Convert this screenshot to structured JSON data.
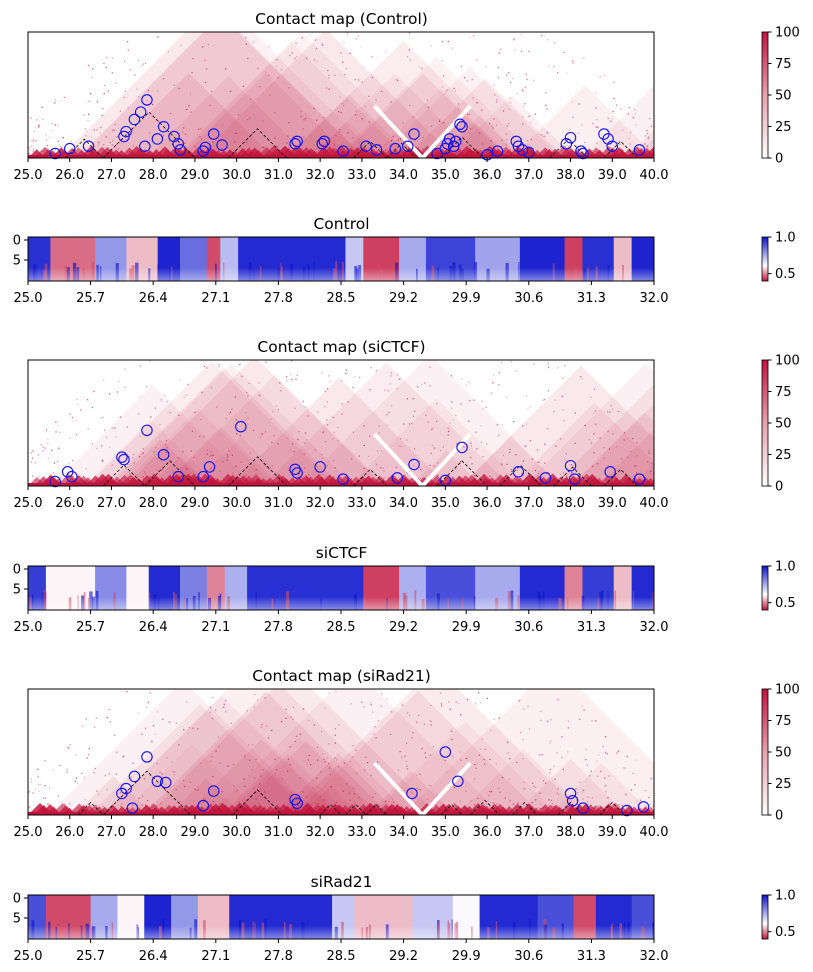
{
  "palette": {
    "contact_low": "#ffffff",
    "contact_high": "#c2133c",
    "score_low": "#c2133c",
    "score_mid": "#ffffff",
    "score_high": "#0a12cc",
    "circle": "#1111ee",
    "boundary_line": "#000000"
  },
  "chart_data": [
    {
      "id": "contact-control",
      "type": "heatmap",
      "subtype": "triangular-contact-map",
      "title": "Contact map (Control)",
      "xlim": [
        25.0,
        40.0
      ],
      "xticks": [
        "25.0",
        "26.0",
        "27.0",
        "28.0",
        "29.0",
        "30.0",
        "31.0",
        "32.0",
        "33.0",
        "34.0",
        "35.0",
        "36.0",
        "37.0",
        "38.0",
        "39.0",
        "40.0"
      ],
      "colorbar": {
        "ticks": [
          "0",
          "25",
          "50",
          "75",
          "100"
        ],
        "range": [
          0,
          100
        ]
      },
      "domains": [
        [
          25.9,
          26.8
        ],
        [
          26.8,
          29.0
        ],
        [
          29.8,
          31.2
        ],
        [
          32.8,
          33.6
        ],
        [
          33.6,
          34.3
        ],
        [
          34.9,
          35.9
        ],
        [
          37.5,
          38.4
        ],
        [
          38.8,
          39.6
        ]
      ],
      "loops": [
        [
          25.65,
          0.02
        ],
        [
          26.0,
          0.06
        ],
        [
          26.45,
          0.08
        ],
        [
          27.3,
          0.16
        ],
        [
          27.35,
          0.2
        ],
        [
          27.55,
          0.3
        ],
        [
          27.7,
          0.36
        ],
        [
          27.85,
          0.46
        ],
        [
          27.8,
          0.08
        ],
        [
          28.1,
          0.14
        ],
        [
          28.25,
          0.24
        ],
        [
          28.5,
          0.16
        ],
        [
          28.6,
          0.1
        ],
        [
          28.65,
          0.05
        ],
        [
          29.2,
          0.04
        ],
        [
          29.25,
          0.07
        ],
        [
          29.45,
          0.18
        ],
        [
          29.65,
          0.09
        ],
        [
          31.4,
          0.1
        ],
        [
          31.45,
          0.12
        ],
        [
          32.05,
          0.1
        ],
        [
          32.1,
          0.12
        ],
        [
          32.55,
          0.04
        ],
        [
          33.1,
          0.08
        ],
        [
          33.35,
          0.05
        ],
        [
          33.8,
          0.06
        ],
        [
          34.1,
          0.08
        ],
        [
          34.25,
          0.18
        ],
        [
          34.8,
          0.02
        ],
        [
          35.0,
          0.06
        ],
        [
          35.05,
          0.1
        ],
        [
          35.1,
          0.14
        ],
        [
          35.2,
          0.08
        ],
        [
          35.25,
          0.12
        ],
        [
          35.35,
          0.26
        ],
        [
          35.4,
          0.24
        ],
        [
          36.0,
          0.01
        ],
        [
          36.25,
          0.04
        ],
        [
          36.7,
          0.12
        ],
        [
          36.75,
          0.08
        ],
        [
          36.85,
          0.05
        ],
        [
          37.0,
          0.03
        ],
        [
          37.9,
          0.1
        ],
        [
          38.0,
          0.15
        ],
        [
          38.25,
          0.04
        ],
        [
          38.3,
          0.02
        ],
        [
          38.8,
          0.18
        ],
        [
          38.9,
          0.14
        ],
        [
          39.0,
          0.08
        ],
        [
          39.65,
          0.05
        ]
      ]
    },
    {
      "id": "score-control",
      "type": "heatmap",
      "title": "Control",
      "xlim": [
        25.0,
        32.0
      ],
      "xticks": [
        "25.0",
        "25.7",
        "26.4",
        "27.1",
        "27.8",
        "28.5",
        "29.2",
        "29.9",
        "30.6",
        "31.3",
        "32.0"
      ],
      "yticks": [
        "0",
        "5"
      ],
      "colorbar": {
        "ticks": [
          "1.0",
          "0.5"
        ],
        "range": [
          0.4,
          1.0
        ]
      },
      "bands": [
        [
          25.0,
          25.25,
          0.95
        ],
        [
          25.25,
          25.75,
          0.48
        ],
        [
          25.75,
          26.1,
          0.78
        ],
        [
          26.1,
          26.45,
          0.55
        ],
        [
          26.45,
          26.7,
          0.97
        ],
        [
          26.7,
          27.0,
          0.85
        ],
        [
          27.0,
          27.15,
          0.45
        ],
        [
          27.15,
          27.35,
          0.72
        ],
        [
          27.35,
          28.55,
          0.96
        ],
        [
          28.55,
          28.75,
          0.7
        ],
        [
          28.75,
          29.15,
          0.44
        ],
        [
          29.15,
          29.45,
          0.75
        ],
        [
          29.45,
          30.0,
          0.92
        ],
        [
          30.0,
          30.5,
          0.76
        ],
        [
          30.5,
          31.0,
          0.97
        ],
        [
          31.0,
          31.2,
          0.44
        ],
        [
          31.2,
          31.55,
          0.95
        ],
        [
          31.55,
          31.75,
          0.55
        ],
        [
          31.75,
          32.0,
          0.97
        ]
      ]
    },
    {
      "id": "contact-sictcf",
      "type": "heatmap",
      "subtype": "triangular-contact-map",
      "title": "Contact map (siCTCF)",
      "xlim": [
        25.0,
        40.0
      ],
      "xticks": [
        "25.0",
        "26.0",
        "27.0",
        "28.0",
        "29.0",
        "30.0",
        "31.0",
        "32.0",
        "33.0",
        "34.0",
        "35.0",
        "36.0",
        "37.0",
        "38.0",
        "39.0",
        "40.0"
      ],
      "colorbar": {
        "ticks": [
          "0",
          "25",
          "50",
          "75",
          "100"
        ],
        "range": [
          0,
          100
        ]
      },
      "domains": [
        [
          26.8,
          27.8
        ],
        [
          27.8,
          29.0
        ],
        [
          29.8,
          31.2
        ],
        [
          32.8,
          33.6
        ],
        [
          34.8,
          36.0
        ],
        [
          36.3,
          37.3
        ],
        [
          37.6,
          38.5
        ],
        [
          38.8,
          39.6
        ]
      ],
      "loops": [
        [
          25.65,
          0.02
        ],
        [
          25.95,
          0.1
        ],
        [
          26.05,
          0.06
        ],
        [
          27.25,
          0.22
        ],
        [
          27.3,
          0.2
        ],
        [
          27.85,
          0.44
        ],
        [
          28.25,
          0.24
        ],
        [
          28.6,
          0.06
        ],
        [
          29.2,
          0.06
        ],
        [
          29.35,
          0.14
        ],
        [
          30.1,
          0.47
        ],
        [
          31.4,
          0.12
        ],
        [
          31.45,
          0.09
        ],
        [
          32.0,
          0.14
        ],
        [
          32.55,
          0.04
        ],
        [
          33.85,
          0.05
        ],
        [
          34.25,
          0.16
        ],
        [
          35.0,
          0.03
        ],
        [
          35.4,
          0.3
        ],
        [
          36.75,
          0.1
        ],
        [
          37.4,
          0.05
        ],
        [
          38.0,
          0.15
        ],
        [
          38.1,
          0.04
        ],
        [
          38.95,
          0.1
        ],
        [
          39.65,
          0.04
        ]
      ]
    },
    {
      "id": "score-sictcf",
      "type": "heatmap",
      "title": "siCTCF",
      "xlim": [
        25.0,
        32.0
      ],
      "xticks": [
        "25.0",
        "25.7",
        "26.4",
        "27.1",
        "27.8",
        "28.5",
        "29.2",
        "29.9",
        "30.6",
        "31.3",
        "32.0"
      ],
      "yticks": [
        "0",
        "5"
      ],
      "colorbar": {
        "ticks": [
          "1.0",
          "0.5"
        ],
        "range": [
          0.4,
          1.0
        ]
      },
      "bands": [
        [
          25.0,
          25.2,
          0.93
        ],
        [
          25.2,
          25.75,
          0.6
        ],
        [
          25.75,
          26.1,
          0.8
        ],
        [
          26.1,
          26.35,
          0.6
        ],
        [
          26.35,
          26.7,
          0.96
        ],
        [
          26.7,
          27.0,
          0.82
        ],
        [
          27.0,
          27.2,
          0.5
        ],
        [
          27.2,
          27.45,
          0.74
        ],
        [
          27.45,
          28.75,
          0.95
        ],
        [
          28.75,
          29.15,
          0.44
        ],
        [
          29.15,
          29.45,
          0.74
        ],
        [
          29.45,
          30.0,
          0.9
        ],
        [
          30.0,
          30.5,
          0.75
        ],
        [
          30.5,
          31.0,
          0.96
        ],
        [
          31.0,
          31.2,
          0.5
        ],
        [
          31.2,
          31.55,
          0.93
        ],
        [
          31.55,
          31.75,
          0.55
        ],
        [
          31.75,
          32.0,
          0.96
        ]
      ]
    },
    {
      "id": "contact-sirad21",
      "type": "heatmap",
      "subtype": "triangular-contact-map",
      "title": "Contact map (siRad21)",
      "xlim": [
        25.0,
        40.0
      ],
      "xticks": [
        "25.0",
        "26.0",
        "27.0",
        "28.0",
        "29.0",
        "30.0",
        "31.0",
        "32.0",
        "33.0",
        "34.0",
        "35.0",
        "36.0",
        "37.0",
        "38.0",
        "39.0",
        "40.0"
      ],
      "colorbar": {
        "ticks": [
          "0",
          "25",
          "50",
          "75",
          "100"
        ],
        "range": [
          0,
          100
        ]
      },
      "domains": [
        [
          26.2,
          26.8
        ],
        [
          26.8,
          28.9
        ],
        [
          29.9,
          31.1
        ],
        [
          32.0,
          32.5
        ],
        [
          32.6,
          33.1
        ],
        [
          33.1,
          33.6
        ],
        [
          34.9,
          35.4
        ],
        [
          35.6,
          36.3
        ],
        [
          36.6,
          37.2
        ],
        [
          37.7,
          38.3
        ],
        [
          38.7,
          39.3
        ]
      ],
      "loops": [
        [
          27.25,
          0.16
        ],
        [
          27.35,
          0.2
        ],
        [
          27.55,
          0.3
        ],
        [
          27.5,
          0.04
        ],
        [
          27.85,
          0.46
        ],
        [
          28.1,
          0.26
        ],
        [
          28.3,
          0.25
        ],
        [
          29.2,
          0.06
        ],
        [
          29.45,
          0.18
        ],
        [
          31.4,
          0.11
        ],
        [
          31.45,
          0.08
        ],
        [
          34.2,
          0.16
        ],
        [
          35.0,
          0.5
        ],
        [
          35.3,
          0.26
        ],
        [
          38.0,
          0.16
        ],
        [
          38.05,
          0.1
        ],
        [
          38.3,
          0.04
        ],
        [
          39.35,
          0.02
        ],
        [
          39.75,
          0.05
        ]
      ]
    },
    {
      "id": "score-sirad21",
      "type": "heatmap",
      "title": "siRad21",
      "xlim": [
        25.0,
        32.0
      ],
      "xticks": [
        "25.0",
        "25.7",
        "26.4",
        "27.1",
        "27.8",
        "28.5",
        "29.2",
        "29.9",
        "30.6",
        "31.3",
        "32.0"
      ],
      "yticks": [
        "0",
        "5"
      ],
      "colorbar": {
        "ticks": [
          "1.0",
          "0.5"
        ],
        "range": [
          0.4,
          1.0
        ]
      },
      "bands": [
        [
          25.0,
          25.2,
          0.9
        ],
        [
          25.2,
          25.7,
          0.45
        ],
        [
          25.7,
          26.0,
          0.75
        ],
        [
          26.0,
          26.3,
          0.6
        ],
        [
          26.3,
          26.6,
          0.97
        ],
        [
          26.6,
          26.9,
          0.78
        ],
        [
          26.9,
          27.25,
          0.55
        ],
        [
          27.25,
          28.4,
          0.96
        ],
        [
          28.4,
          28.65,
          0.7
        ],
        [
          28.65,
          29.3,
          0.55
        ],
        [
          29.3,
          29.75,
          0.7
        ],
        [
          29.75,
          30.05,
          0.62
        ],
        [
          30.05,
          30.7,
          0.96
        ],
        [
          30.7,
          31.1,
          0.9
        ],
        [
          31.1,
          31.35,
          0.45
        ],
        [
          31.35,
          31.75,
          0.96
        ],
        [
          31.75,
          32.0,
          0.9
        ]
      ]
    }
  ]
}
